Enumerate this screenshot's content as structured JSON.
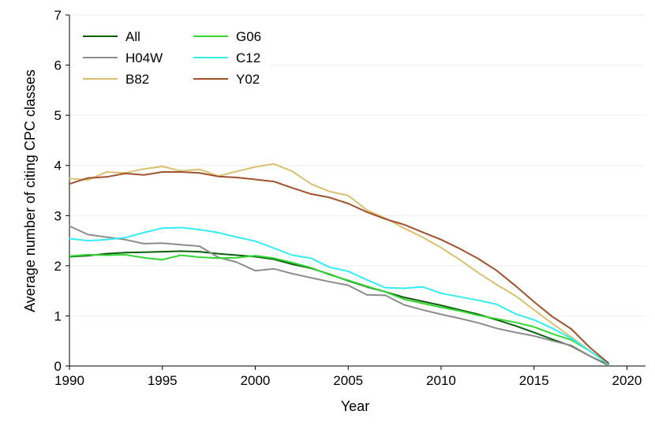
{
  "chart_data": {
    "type": "line",
    "title": "",
    "xlabel": "Year",
    "ylabel": "Average number of citing CPC classes",
    "xlim": [
      1990,
      2021
    ],
    "ylim": [
      0,
      7
    ],
    "xticks": [
      1990,
      1995,
      2000,
      2005,
      2010,
      2015,
      2020
    ],
    "yticks": [
      0,
      1,
      2,
      3,
      4,
      5,
      6,
      7
    ],
    "grid": true,
    "legend_position": "top-left",
    "x": [
      1990,
      1991,
      1992,
      1993,
      1994,
      1995,
      1996,
      1997,
      1998,
      1999,
      2000,
      2001,
      2002,
      2003,
      2004,
      2005,
      2006,
      2007,
      2008,
      2009,
      2010,
      2011,
      2012,
      2013,
      2014,
      2015,
      2016,
      2017,
      2018,
      2019
    ],
    "series": [
      {
        "name": "All",
        "color": "#0b5e0b",
        "values": [
          2.18,
          2.2,
          2.24,
          2.26,
          2.27,
          2.28,
          2.29,
          2.28,
          2.24,
          2.21,
          2.18,
          2.13,
          2.03,
          1.95,
          1.83,
          1.7,
          1.58,
          1.48,
          1.37,
          1.29,
          1.21,
          1.12,
          1.03,
          0.92,
          0.8,
          0.67,
          0.53,
          0.4,
          0.2,
          0.02
        ]
      },
      {
        "name": "H04W",
        "color": "#8c8c8c",
        "values": [
          2.79,
          2.62,
          2.57,
          2.52,
          2.44,
          2.45,
          2.42,
          2.39,
          2.17,
          2.07,
          1.9,
          1.94,
          1.84,
          1.76,
          1.68,
          1.61,
          1.42,
          1.41,
          1.22,
          1.12,
          1.03,
          0.95,
          0.86,
          0.75,
          0.67,
          0.6,
          0.5,
          0.41,
          0.2,
          0.01
        ]
      },
      {
        "name": "B82",
        "color": "#d8c070",
        "values": [
          3.74,
          3.71,
          3.87,
          3.85,
          3.93,
          3.98,
          3.89,
          3.92,
          3.79,
          3.88,
          3.97,
          4.03,
          3.88,
          3.63,
          3.48,
          3.4,
          3.11,
          2.95,
          2.75,
          2.57,
          2.36,
          2.12,
          1.86,
          1.62,
          1.4,
          1.12,
          0.84,
          0.58,
          0.3,
          0.05
        ]
      },
      {
        "name": "G06",
        "color": "#33d633",
        "values": [
          2.19,
          2.22,
          2.21,
          2.22,
          2.16,
          2.12,
          2.21,
          2.17,
          2.15,
          2.16,
          2.2,
          2.15,
          2.06,
          1.96,
          1.82,
          1.71,
          1.59,
          1.48,
          1.33,
          1.25,
          1.17,
          1.1,
          1.01,
          0.94,
          0.87,
          0.78,
          0.64,
          0.52,
          0.3,
          0.04
        ]
      },
      {
        "name": "C12",
        "color": "#33ecf4",
        "values": [
          2.54,
          2.5,
          2.52,
          2.56,
          2.66,
          2.75,
          2.76,
          2.72,
          2.66,
          2.57,
          2.49,
          2.35,
          2.21,
          2.15,
          1.97,
          1.89,
          1.72,
          1.56,
          1.55,
          1.58,
          1.45,
          1.38,
          1.31,
          1.23,
          1.04,
          0.92,
          0.75,
          0.55,
          0.3,
          0.04
        ]
      },
      {
        "name": "Y02",
        "color": "#a0522d",
        "values": [
          3.63,
          3.75,
          3.77,
          3.84,
          3.81,
          3.87,
          3.87,
          3.85,
          3.78,
          3.76,
          3.72,
          3.68,
          3.55,
          3.43,
          3.36,
          3.24,
          3.07,
          2.93,
          2.82,
          2.67,
          2.52,
          2.34,
          2.14,
          1.9,
          1.6,
          1.28,
          0.98,
          0.74,
          0.37,
          0.06
        ]
      }
    ]
  }
}
